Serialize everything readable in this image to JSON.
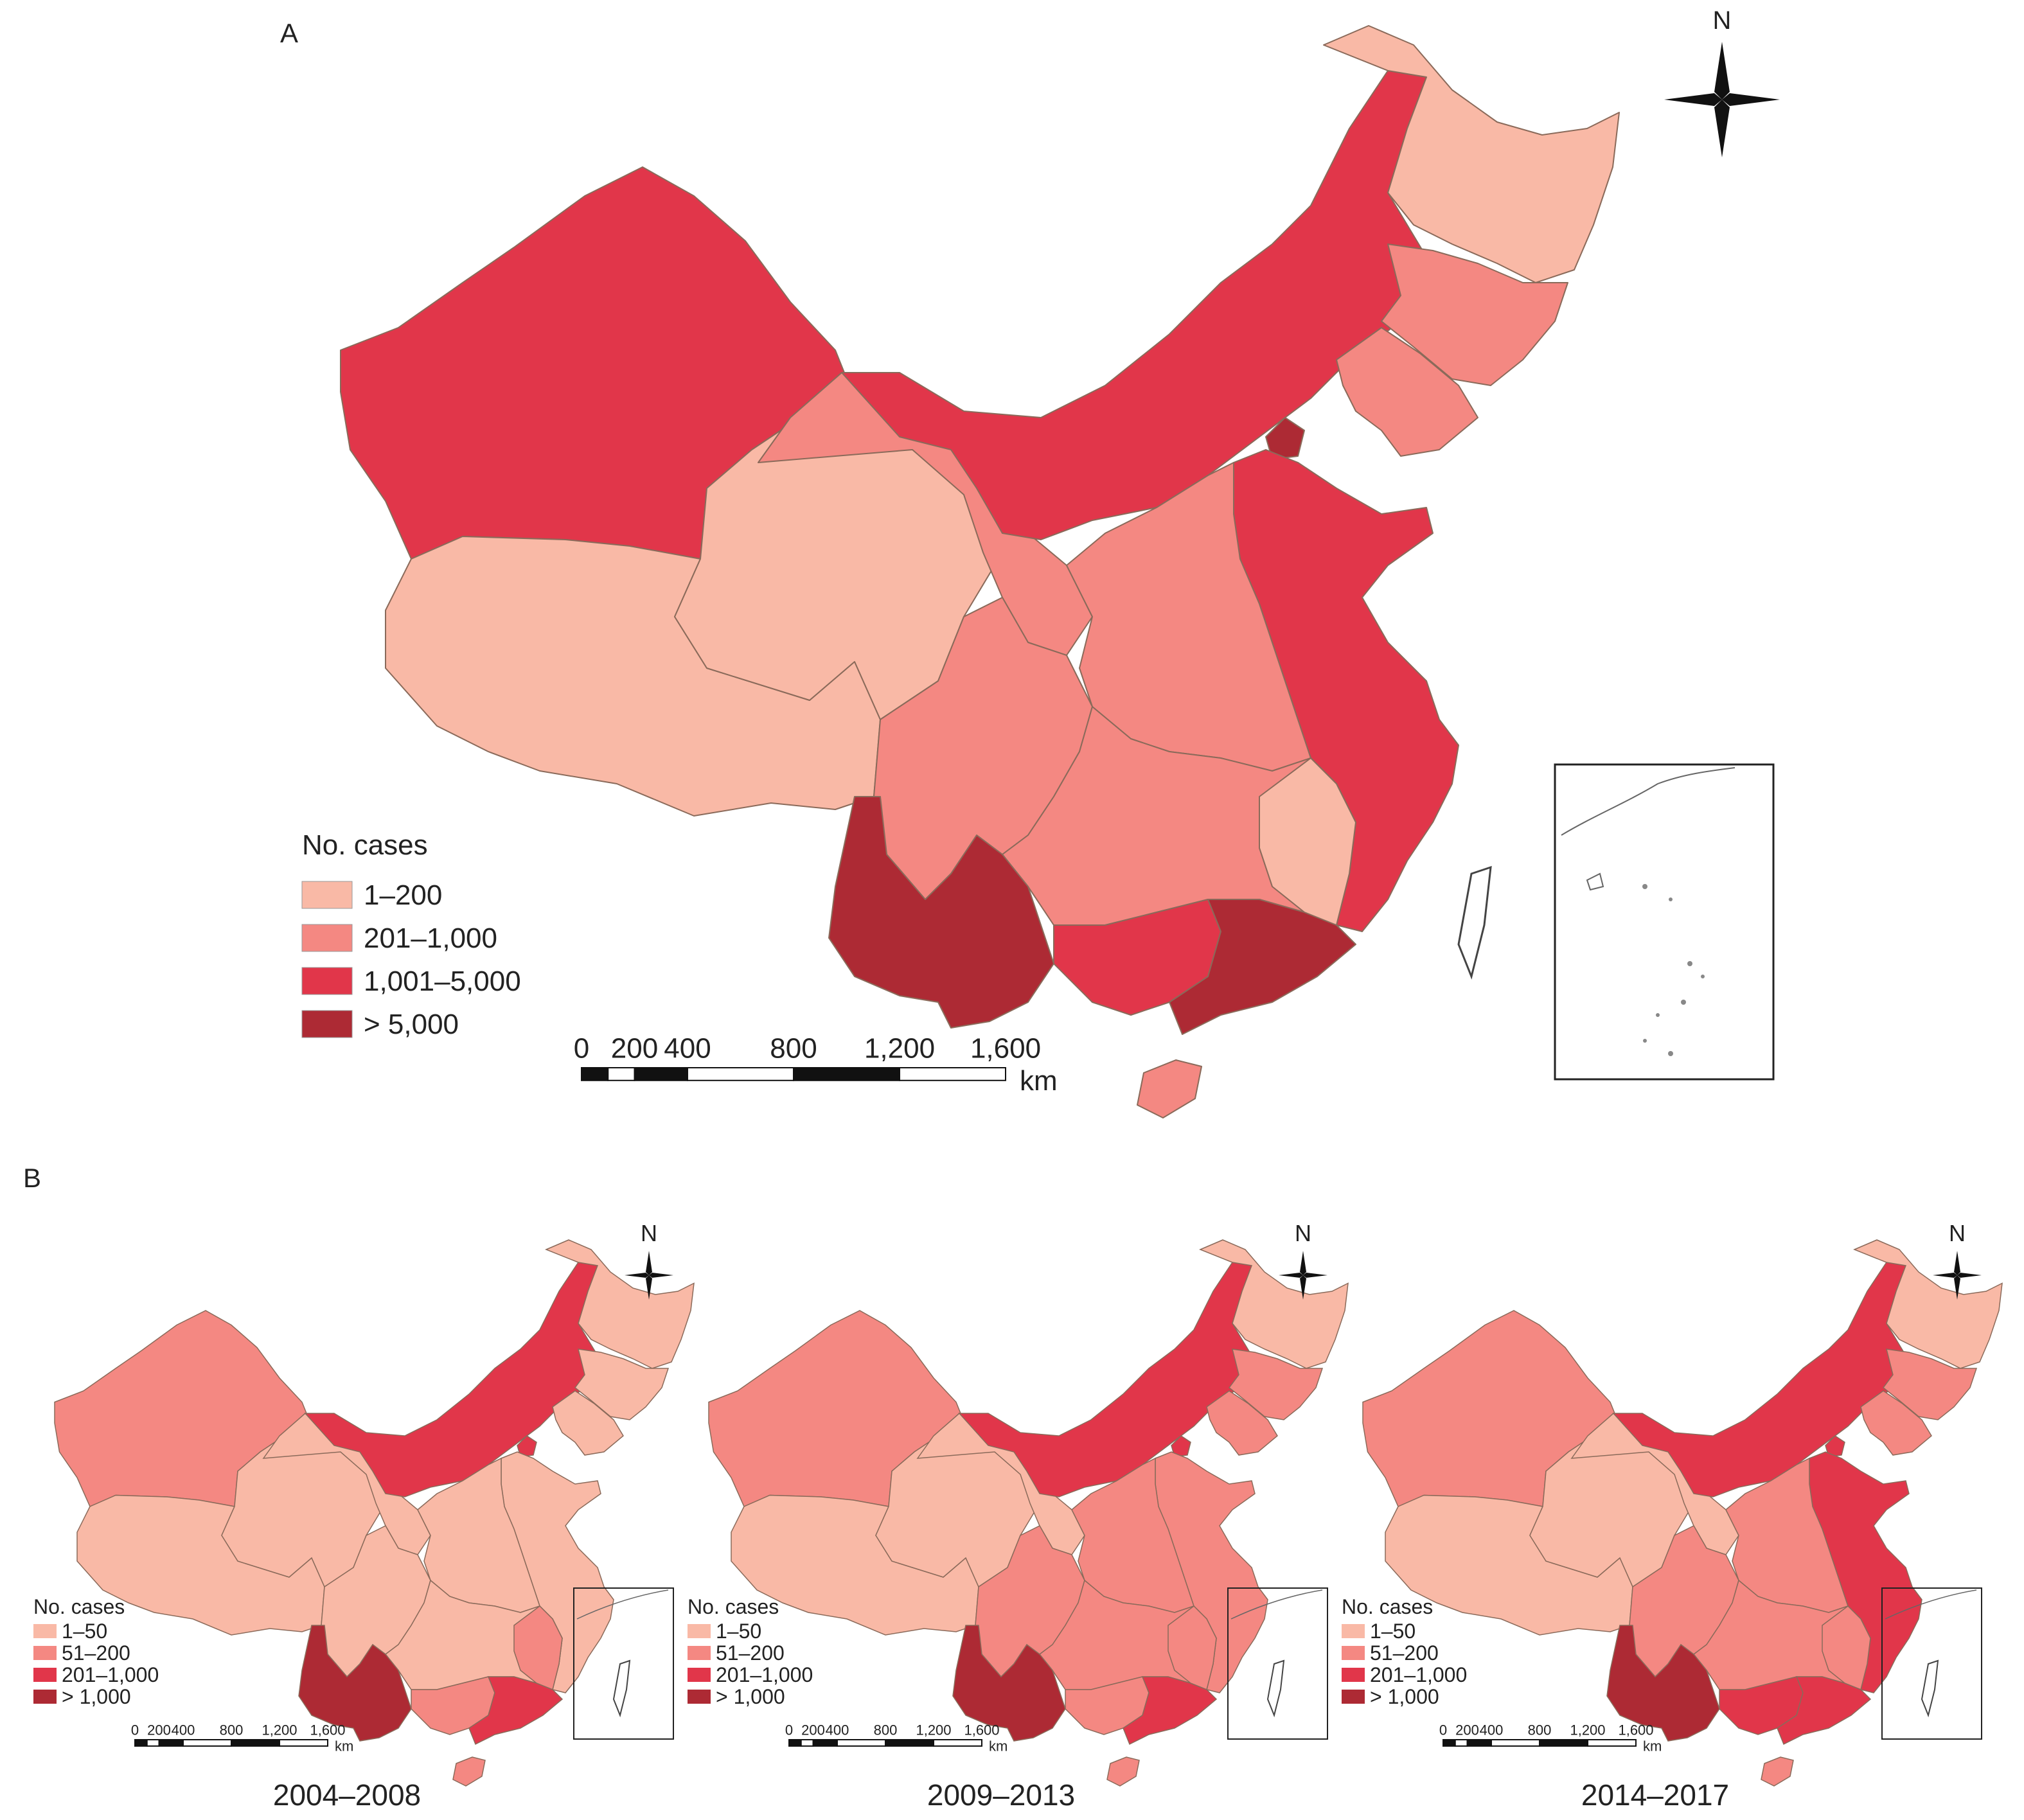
{
  "colors": {
    "c1": "#f9b9a6",
    "c2": "#f48882",
    "c3": "#e1364a",
    "c4": "#ad2a34"
  },
  "panel_a": {
    "label": "A",
    "north": "N",
    "legend_title": "No. cases",
    "legend_items": [
      {
        "label": "1–200",
        "color_key": "c1"
      },
      {
        "label": "201–1,000",
        "color_key": "c2"
      },
      {
        "label": "1,001–5,000",
        "color_key": "c3"
      },
      {
        "label": "> 5,000",
        "color_key": "c4"
      }
    ],
    "scale_ticks": [
      "0",
      "200",
      "400",
      "800",
      "1,200",
      "1,600"
    ],
    "scale_unit": "km"
  },
  "panel_b": {
    "label": "B",
    "legend_title": "No. cases",
    "legend_items": [
      {
        "label": "1–50",
        "color_key": "c1"
      },
      {
        "label": "51–200",
        "color_key": "c2"
      },
      {
        "label": "201–1,000",
        "color_key": "c3"
      },
      {
        "label": "> 1,000",
        "color_key": "c4"
      }
    ],
    "scale_ticks": [
      "0",
      "200",
      "400",
      "800",
      "1,200",
      "1,600"
    ],
    "scale_unit": "km",
    "north": "N",
    "maps": [
      {
        "period": "2004–2008",
        "regions": {
          "xinjiang": "c2",
          "tibet": "c1",
          "qinghai": "c1",
          "gansu": "c1",
          "inner_mongolia": "c3",
          "heilongjiang": "c1",
          "jilin": "c1",
          "liaoning": "c1",
          "beijing": "c3",
          "north_central": "c1",
          "east_coast": "c1",
          "sichuan": "c1",
          "central_south": "c1",
          "yunnan": "c4",
          "guangxi": "c2",
          "guangdong": "c3",
          "fujian": "c2",
          "hainan": "c2"
        }
      },
      {
        "period": "2009–2013",
        "regions": {
          "xinjiang": "c2",
          "tibet": "c1",
          "qinghai": "c1",
          "gansu": "c1",
          "inner_mongolia": "c3",
          "heilongjiang": "c1",
          "jilin": "c2",
          "liaoning": "c2",
          "beijing": "c3",
          "north_central": "c2",
          "east_coast": "c2",
          "sichuan": "c2",
          "central_south": "c2",
          "yunnan": "c4",
          "guangxi": "c2",
          "guangdong": "c3",
          "fujian": "c2",
          "hainan": "c2"
        }
      },
      {
        "period": "2014–2017",
        "regions": {
          "xinjiang": "c2",
          "tibet": "c1",
          "qinghai": "c1",
          "gansu": "c1",
          "inner_mongolia": "c3",
          "heilongjiang": "c1",
          "jilin": "c2",
          "liaoning": "c2",
          "beijing": "c3",
          "north_central": "c2",
          "east_coast": "c3",
          "sichuan": "c2",
          "central_south": "c2",
          "yunnan": "c4",
          "guangxi": "c3",
          "guangdong": "c3",
          "fujian": "c2",
          "hainan": "c2"
        }
      }
    ]
  }
}
